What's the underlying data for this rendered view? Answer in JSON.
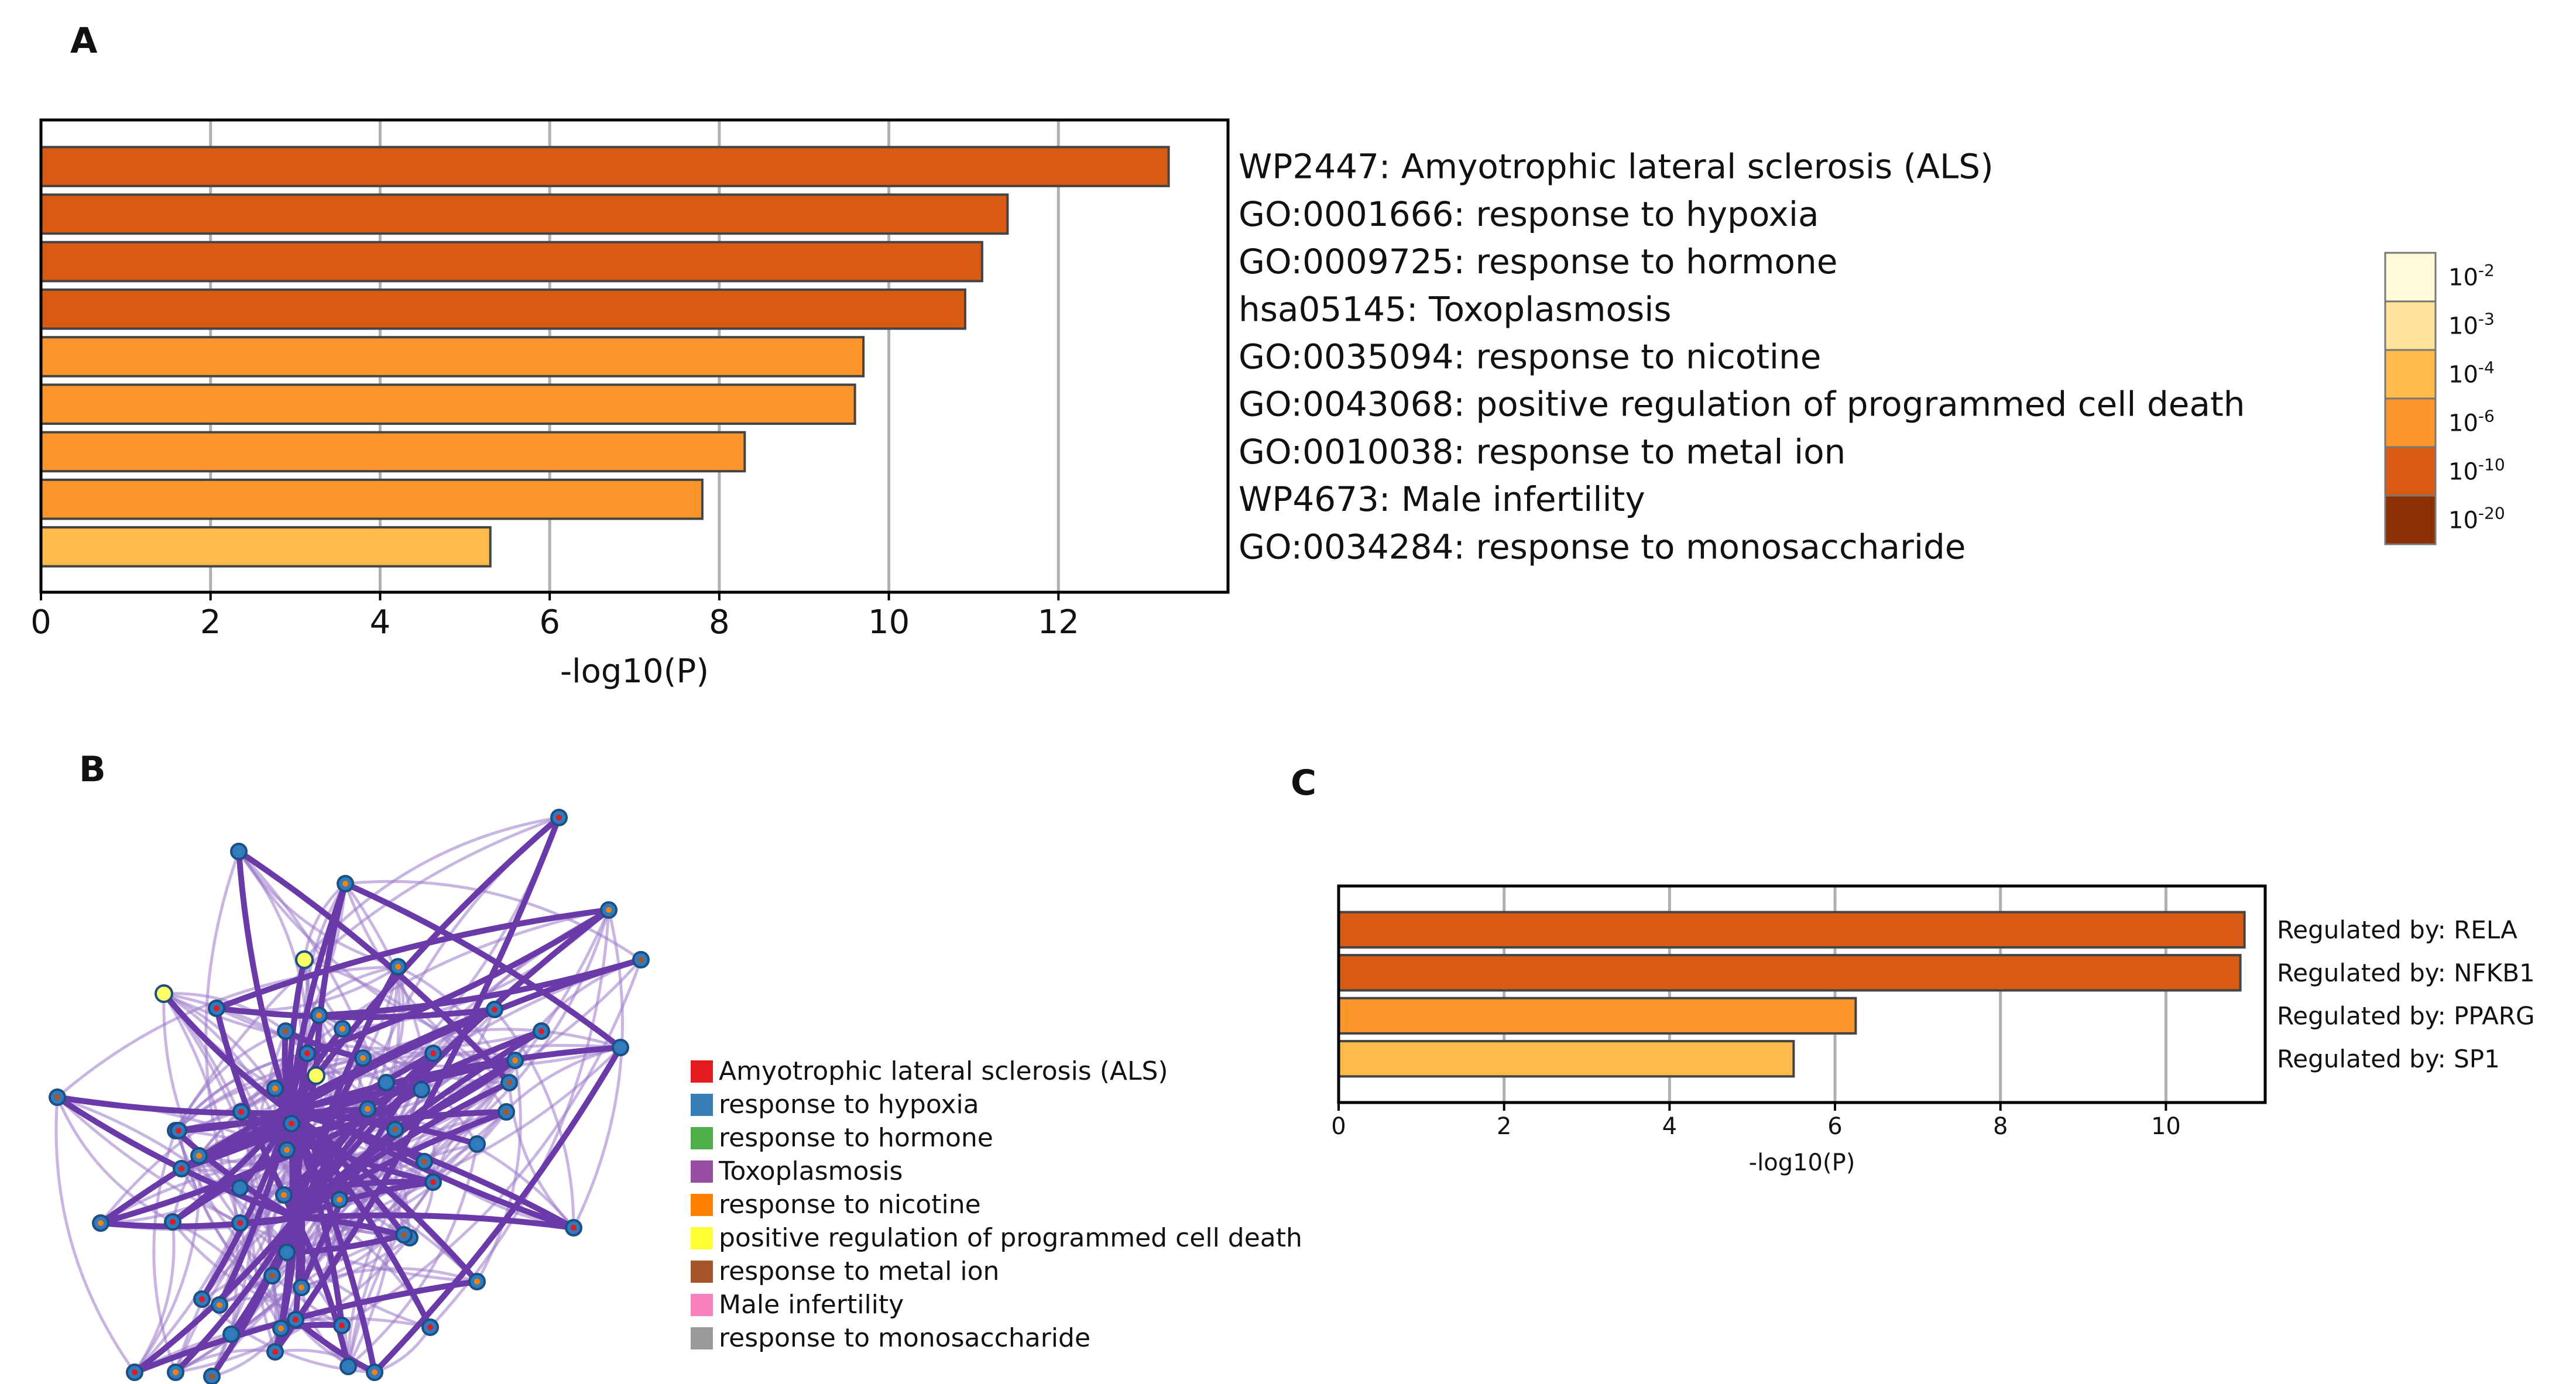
{
  "panels": {
    "a": {
      "label": "A"
    },
    "b": {
      "label": "B"
    },
    "c": {
      "label": "C"
    }
  },
  "colors": {
    "p_1e-20": "#8f2f06",
    "p_1e-10": "#d95a12",
    "p_1e-6": "#fb962c",
    "p_1e-4": "#fdbb4a",
    "p_1e-3": "#fee39a",
    "p_1e-2": "#fffbd9",
    "bar_border": "#444444",
    "grid": "#b0b0b0",
    "network_edge": "#6a3aa8",
    "node_fill": "#2e7bbf"
  },
  "colorscale": {
    "title": "",
    "items": [
      {
        "base": "10",
        "exp": "-2",
        "color": "#fffbd9"
      },
      {
        "base": "10",
        "exp": "-3",
        "color": "#fee39a"
      },
      {
        "base": "10",
        "exp": "-4",
        "color": "#fdbb4a"
      },
      {
        "base": "10",
        "exp": "-6",
        "color": "#fb962c"
      },
      {
        "base": "10",
        "exp": "-10",
        "color": "#d95a12"
      },
      {
        "base": "10",
        "exp": "-20",
        "color": "#8f2f06"
      }
    ]
  },
  "network_legend": {
    "items": [
      {
        "label": "Amyotrophic lateral sclerosis (ALS)",
        "color": "#e41a1c"
      },
      {
        "label": "response to hypoxia",
        "color": "#377eb8"
      },
      {
        "label": "response to hormone",
        "color": "#4daf4a"
      },
      {
        "label": "Toxoplasmosis",
        "color": "#984ea3"
      },
      {
        "label": "response to nicotine",
        "color": "#ff7f00"
      },
      {
        "label": "positive regulation of programmed cell death",
        "color": "#ffff33"
      },
      {
        "label": "response to metal ion",
        "color": "#a65628"
      },
      {
        "label": "Male infertility",
        "color": "#f781bf"
      },
      {
        "label": "response to monosaccharide",
        "color": "#999999"
      }
    ]
  },
  "chart_data": [
    {
      "type": "bar",
      "orientation": "horizontal",
      "title": "",
      "xlabel": "-log10(P)",
      "ylabel": "",
      "xlim": [
        0,
        14
      ],
      "xticks": [
        0,
        2,
        4,
        6,
        8,
        10,
        12
      ],
      "grid": true,
      "categories": [
        "WP2447: Amyotrophic lateral sclerosis (ALS)",
        "GO:0001666: response to hypoxia",
        "GO:0009725: response to hormone",
        "hsa05145: Toxoplasmosis",
        "GO:0035094: response to nicotine",
        "GO:0043068: positive regulation of programmed cell death",
        "GO:0010038: response to metal ion",
        "WP4673: Male infertility",
        "GO:0034284: response to monosaccharide"
      ],
      "values": [
        13.3,
        11.4,
        11.1,
        10.9,
        9.7,
        9.6,
        8.3,
        7.8,
        5.3
      ],
      "bar_colors": [
        "#d95a12",
        "#d95a12",
        "#d95a12",
        "#d95a12",
        "#fb962c",
        "#fb962c",
        "#fb962c",
        "#fb962c",
        "#fdbb4a"
      ]
    },
    {
      "type": "bar",
      "orientation": "horizontal",
      "title": "",
      "xlabel": "-log10(P)",
      "ylabel": "",
      "xlim": [
        0,
        11.2
      ],
      "xticks": [
        0,
        2,
        4,
        6,
        8,
        10
      ],
      "grid": true,
      "categories": [
        "Regulated by: RELA",
        "Regulated by: NFKB1",
        "Regulated by: PPARG",
        "Regulated by: SP1"
      ],
      "values": [
        10.95,
        10.9,
        6.25,
        5.5
      ],
      "bar_colors": [
        "#d95a12",
        "#d95a12",
        "#fb962c",
        "#fdbb4a"
      ]
    }
  ]
}
